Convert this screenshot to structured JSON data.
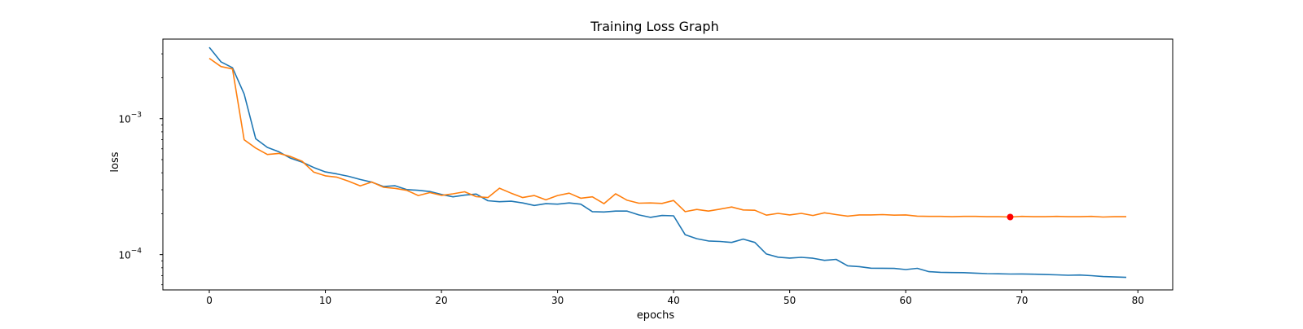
{
  "chart_data": {
    "type": "line",
    "title": "Training Loss Graph",
    "xlabel": "epochs",
    "ylabel": "loss",
    "xlim": [
      -4,
      83
    ],
    "ylim": [
      5.5e-05,
      0.00385
    ],
    "yscale": "log",
    "grid": false,
    "x_ticks": [
      0,
      10,
      20,
      30,
      40,
      50,
      60,
      70,
      80
    ],
    "y_ticks": [
      {
        "value": 0.0001,
        "base": "10",
        "exponent": "−4"
      },
      {
        "value": 0.001,
        "base": "10",
        "exponent": "−3"
      }
    ],
    "x": [
      0,
      1,
      2,
      3,
      4,
      5,
      6,
      7,
      8,
      9,
      10,
      11,
      12,
      13,
      14,
      15,
      16,
      17,
      18,
      19,
      20,
      21,
      22,
      23,
      24,
      25,
      26,
      27,
      28,
      29,
      30,
      31,
      32,
      33,
      34,
      35,
      36,
      37,
      38,
      39,
      40,
      41,
      42,
      43,
      44,
      45,
      46,
      47,
      48,
      49,
      50,
      51,
      52,
      53,
      54,
      55,
      56,
      57,
      58,
      59,
      60,
      61,
      62,
      63,
      64,
      65,
      66,
      67,
      68,
      69,
      70,
      71,
      72,
      73,
      74,
      75,
      76,
      77,
      78,
      79
    ],
    "series": [
      {
        "color": "#1f77b4",
        "values": [
          0.00335,
          0.00262,
          0.00237,
          0.00152,
          0.000712,
          0.000615,
          0.000571,
          0.000512,
          0.000479,
          0.000437,
          0.000406,
          0.000392,
          0.000377,
          0.000357,
          0.000341,
          0.000317,
          0.000321,
          0.000301,
          0.000297,
          0.000291,
          0.000277,
          0.000266,
          0.000274,
          0.000279,
          0.000249,
          0.000245,
          0.000247,
          0.00024,
          0.00023,
          0.000237,
          0.000235,
          0.00024,
          0.000235,
          0.000207,
          0.000206,
          0.000209,
          0.000209,
          0.000196,
          0.000188,
          0.000194,
          0.000193,
          0.00014,
          0.000131,
          0.000126,
          0.000125,
          0.000123,
          0.00013,
          0.000123,
          0.000101,
          9.58e-05,
          9.43e-05,
          9.55e-05,
          9.4e-05,
          9.08e-05,
          9.23e-05,
          8.27e-05,
          8.16e-05,
          7.95e-05,
          7.94e-05,
          7.92e-05,
          7.76e-05,
          7.93e-05,
          7.49e-05,
          7.41e-05,
          7.38e-05,
          7.37e-05,
          7.31e-05,
          7.25e-05,
          7.23e-05,
          7.2e-05,
          7.21e-05,
          7.18e-05,
          7.14e-05,
          7.1e-05,
          7.05e-05,
          7.08e-05,
          7e-05,
          6.9e-05,
          6.85e-05,
          6.8e-05
        ]
      },
      {
        "color": "#ff7f0e",
        "values": [
          0.00278,
          0.00242,
          0.00232,
          0.0007,
          0.000608,
          0.000545,
          0.000555,
          0.000527,
          0.000486,
          0.000404,
          0.00038,
          0.000371,
          0.000347,
          0.00032,
          0.000342,
          0.000313,
          0.000307,
          0.000297,
          0.000272,
          0.000286,
          0.000273,
          0.00028,
          0.00029,
          0.000267,
          0.000263,
          0.000308,
          0.000283,
          0.000263,
          0.000272,
          0.000253,
          0.000272,
          0.000283,
          0.00026,
          0.000266,
          0.000237,
          0.00028,
          0.000251,
          0.000239,
          0.00024,
          0.000238,
          0.00025,
          0.000207,
          0.000215,
          0.000209,
          0.000216,
          0.000224,
          0.000213,
          0.000212,
          0.000195,
          0.000201,
          0.000196,
          0.000201,
          0.000194,
          0.000203,
          0.000197,
          0.000192,
          0.000196,
          0.000196,
          0.000197,
          0.000195,
          0.000196,
          0.000192,
          0.000191,
          0.000191,
          0.00019,
          0.000191,
          0.000191,
          0.00019,
          0.00019,
          0.000189,
          0.000191,
          0.00019,
          0.00019,
          0.000191,
          0.00019,
          0.00019,
          0.000191,
          0.000189,
          0.00019,
          0.00019
        ]
      }
    ],
    "marker": {
      "x": 69,
      "y": 0.000189,
      "color": "#ff0000"
    }
  }
}
